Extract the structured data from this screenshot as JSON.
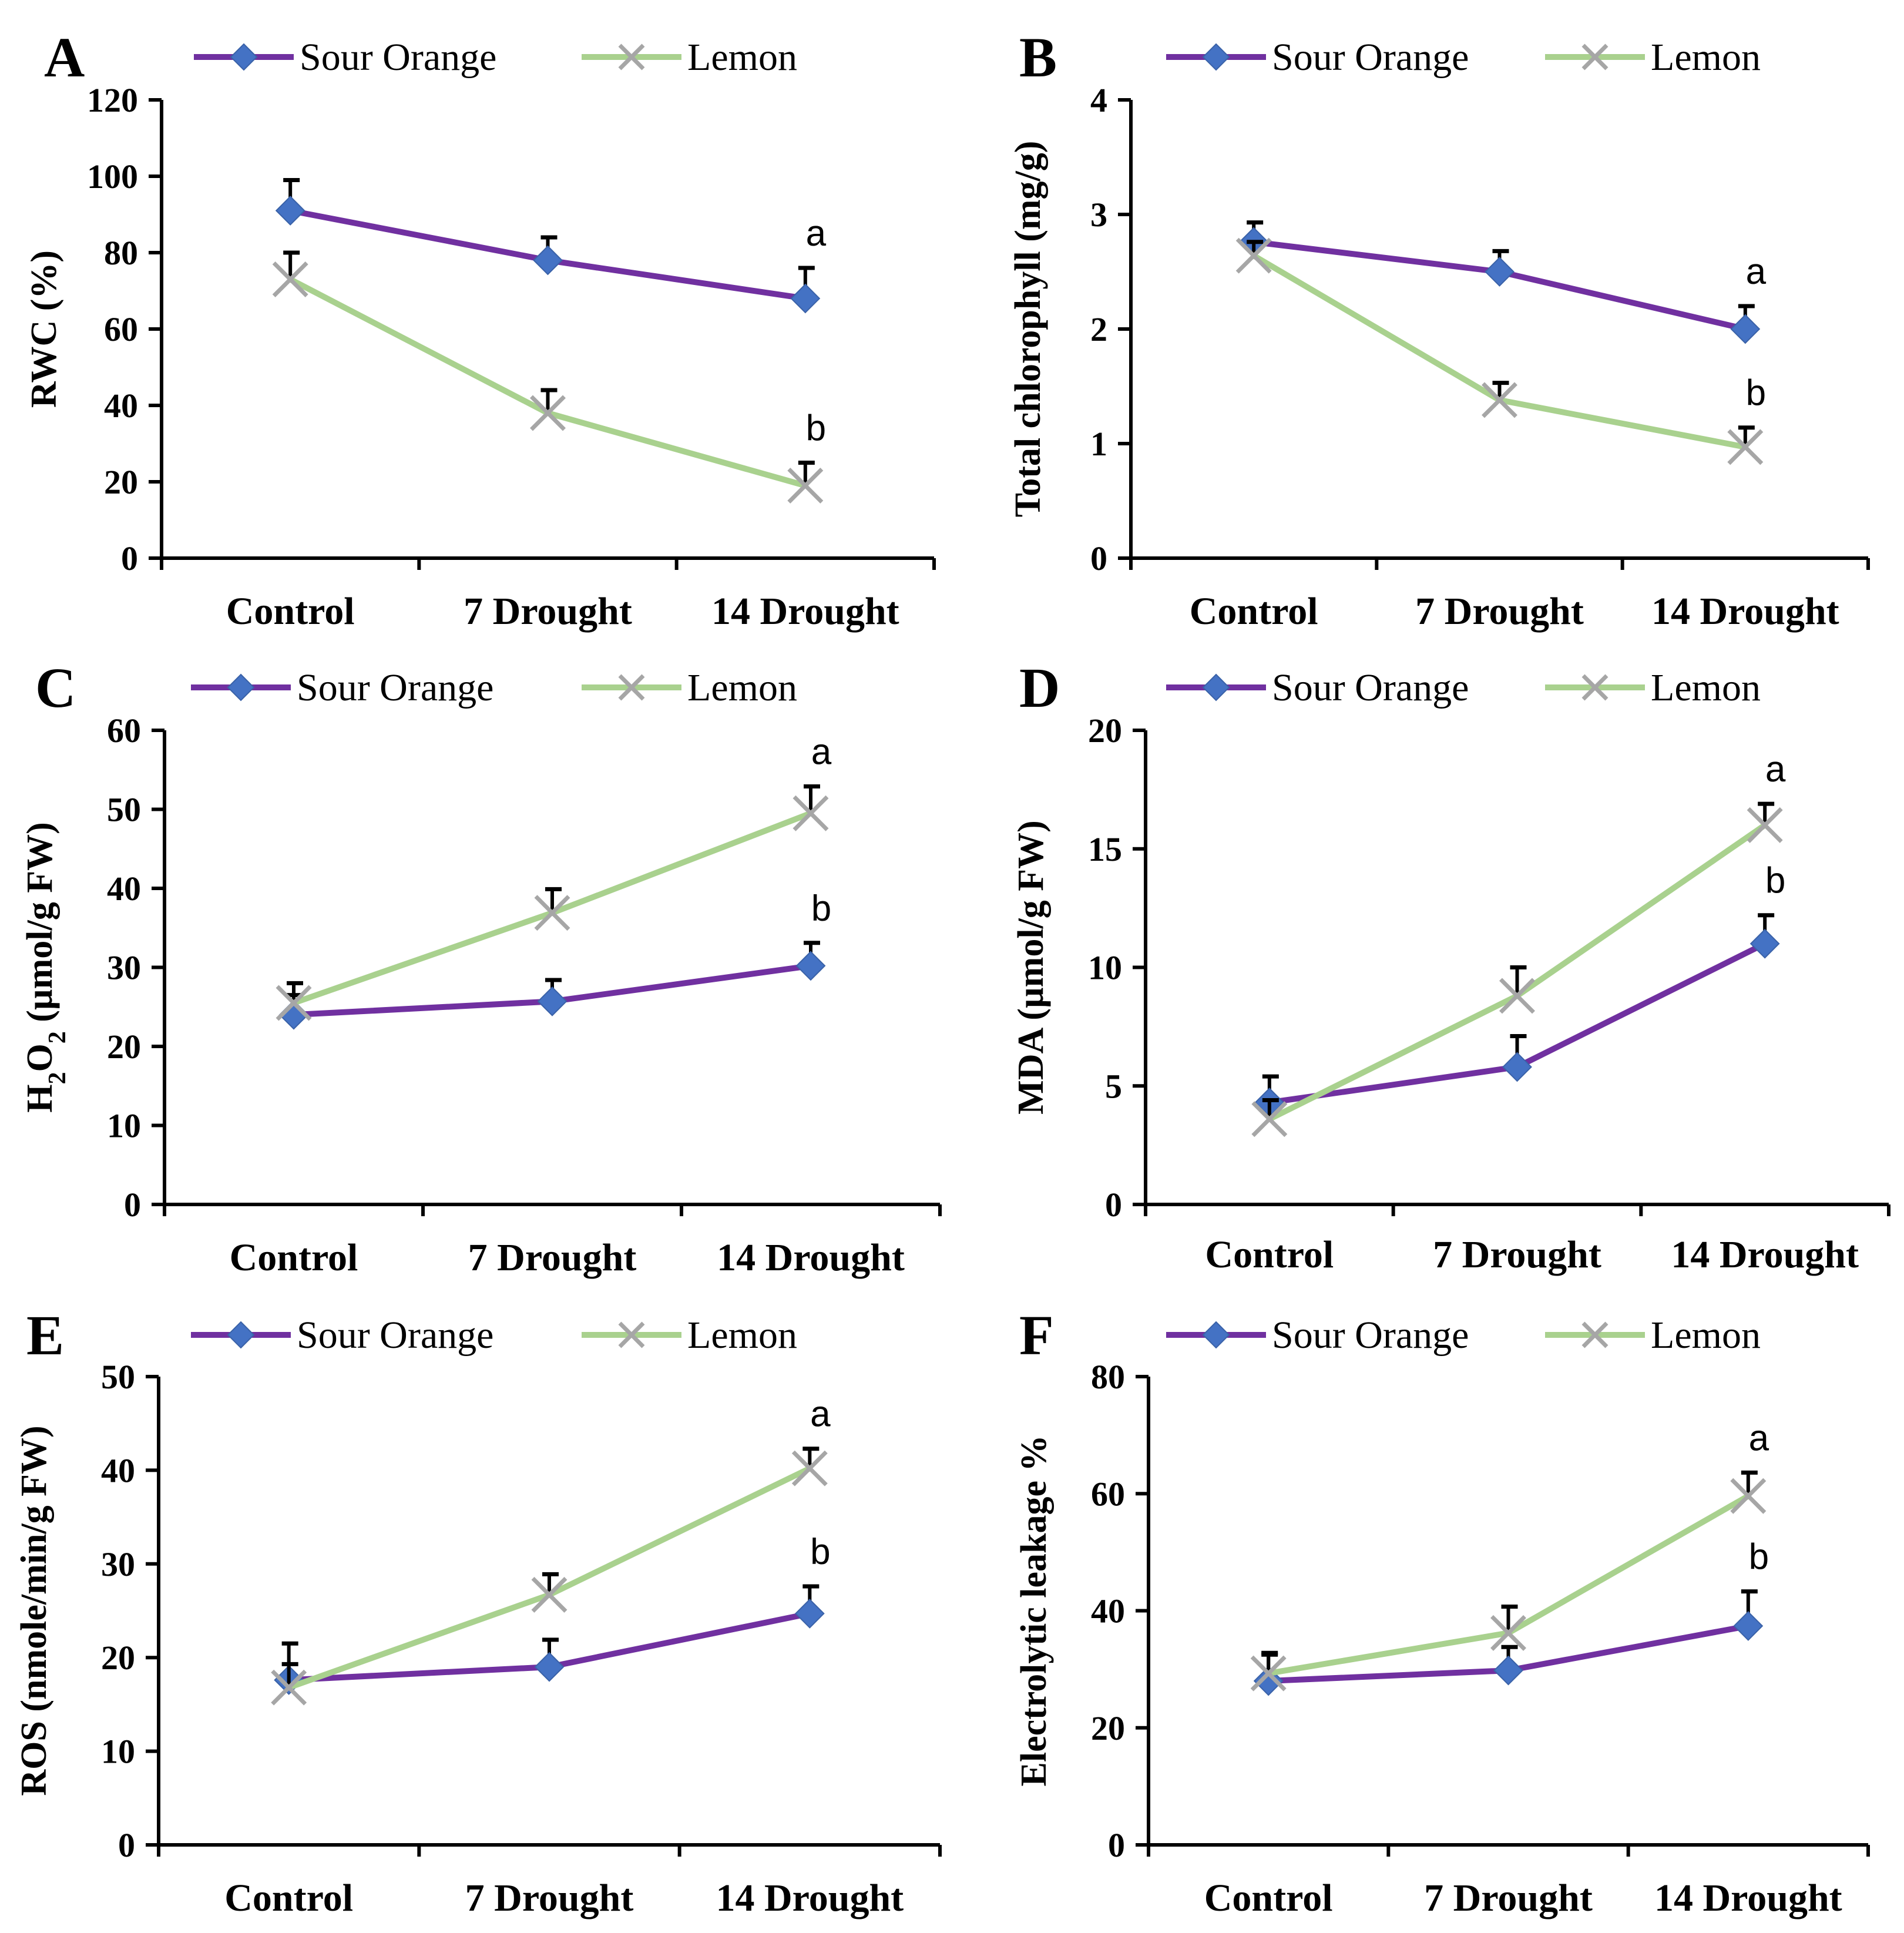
{
  "colors": {
    "sour_orange_line": "#7030A0",
    "sour_orange_marker": "#4472C4",
    "lemon_line": "#A9D18E",
    "lemon_marker": "#A6A6A6",
    "axis": "#000000"
  },
  "chart_data": [
    {
      "panel": "A",
      "type": "line",
      "ylabel": "RWC (%)",
      "ylim": [
        0,
        120
      ],
      "yticks": [
        0,
        20,
        40,
        60,
        80,
        100,
        120
      ],
      "categories": [
        "Control",
        "7 Drought",
        "14 Drought"
      ],
      "series": [
        {
          "name": "Sour Orange",
          "marker": "diamond",
          "values": [
            91,
            78,
            68
          ],
          "errors": [
            8,
            6,
            8
          ],
          "letters": [
            "",
            "",
            "a"
          ]
        },
        {
          "name": "Lemon",
          "marker": "x",
          "values": [
            73,
            38,
            19
          ],
          "errors": [
            7,
            6,
            6
          ],
          "letters": [
            "",
            "",
            "b"
          ]
        }
      ]
    },
    {
      "panel": "B",
      "type": "line",
      "ylabel": "Total chlorophyll (mg/g)",
      "ylim": [
        0,
        4
      ],
      "yticks": [
        0,
        1,
        2,
        3,
        4
      ],
      "categories": [
        "Control",
        "7 Drought",
        "14 Drought"
      ],
      "series": [
        {
          "name": "Sour Orange",
          "marker": "diamond",
          "values": [
            2.76,
            2.5,
            2.0
          ],
          "errors": [
            0.17,
            0.18,
            0.2
          ],
          "letters": [
            "",
            "",
            "a"
          ]
        },
        {
          "name": "Lemon",
          "marker": "x",
          "values": [
            2.64,
            1.38,
            0.97
          ],
          "errors": [
            0.12,
            0.15,
            0.17
          ],
          "letters": [
            "",
            "",
            "b"
          ]
        }
      ]
    },
    {
      "panel": "C",
      "type": "line",
      "ylabel": "H2O2 (µmol/g FW)",
      "ylabel_parts": {
        "h": "H",
        "sub1": "2",
        "o": "O",
        "sub2": "2",
        "rest": " (µmol/g FW)"
      },
      "ylim": [
        0,
        60
      ],
      "yticks": [
        0,
        10,
        20,
        30,
        40,
        50,
        60
      ],
      "categories": [
        "Control",
        "7 Drought",
        "14 Drought"
      ],
      "series": [
        {
          "name": "Sour Orange",
          "marker": "diamond",
          "values": [
            24,
            25.7,
            30.2
          ],
          "errors": [
            2.5,
            2.7,
            2.9
          ],
          "letters": [
            "",
            "",
            "b"
          ]
        },
        {
          "name": "Lemon",
          "marker": "x",
          "values": [
            25.5,
            36.9,
            49.5
          ],
          "errors": [
            2.5,
            3.0,
            3.4
          ],
          "letters": [
            "",
            "",
            "a"
          ]
        }
      ]
    },
    {
      "panel": "D",
      "type": "line",
      "ylabel": "MDA (µmol/g FW)",
      "ylim": [
        0,
        20
      ],
      "yticks": [
        0,
        5,
        10,
        15,
        20
      ],
      "categories": [
        "Control",
        "7 Drought",
        "14 Drought"
      ],
      "series": [
        {
          "name": "Sour Orange",
          "marker": "diamond",
          "values": [
            4.3,
            5.8,
            11.0
          ],
          "errors": [
            1.1,
            1.3,
            1.2
          ],
          "letters": [
            "",
            "",
            "b"
          ]
        },
        {
          "name": "Lemon",
          "marker": "x",
          "values": [
            3.6,
            8.8,
            16.0
          ],
          "errors": [
            0.8,
            1.2,
            0.9
          ],
          "letters": [
            "",
            "",
            "a"
          ]
        }
      ]
    },
    {
      "panel": "E",
      "type": "line",
      "ylabel": "ROS (nmole/min/g FW)",
      "ylim": [
        0,
        50
      ],
      "yticks": [
        0,
        10,
        20,
        30,
        40,
        50
      ],
      "categories": [
        "Control",
        "7 Drought",
        "14 Drought"
      ],
      "series": [
        {
          "name": "Sour Orange",
          "marker": "diamond",
          "values": [
            17.6,
            19.0,
            24.7
          ],
          "errors": [
            3.9,
            2.9,
            2.9
          ],
          "letters": [
            "",
            "",
            "b"
          ]
        },
        {
          "name": "Lemon",
          "marker": "x",
          "values": [
            16.8,
            26.7,
            40.2
          ],
          "errors": [
            2.5,
            2.2,
            2.1
          ],
          "letters": [
            "",
            "",
            "a"
          ]
        }
      ]
    },
    {
      "panel": "F",
      "type": "line",
      "ylabel": "Electrolytic leakage %",
      "ylim": [
        0,
        80
      ],
      "yticks": [
        0,
        20,
        40,
        60,
        80
      ],
      "categories": [
        "Control",
        "7 Drought",
        "14 Drought"
      ],
      "series": [
        {
          "name": "Sour Orange",
          "marker": "diamond",
          "values": [
            28,
            29.8,
            37.4
          ],
          "errors": [
            4.5,
            4.0,
            5.9
          ],
          "letters": [
            "",
            "",
            "b"
          ]
        },
        {
          "name": "Lemon",
          "marker": "x",
          "values": [
            29.3,
            36.2,
            59.6
          ],
          "errors": [
            3.5,
            4.5,
            4.0
          ],
          "letters": [
            "",
            "",
            "a"
          ]
        }
      ]
    }
  ]
}
